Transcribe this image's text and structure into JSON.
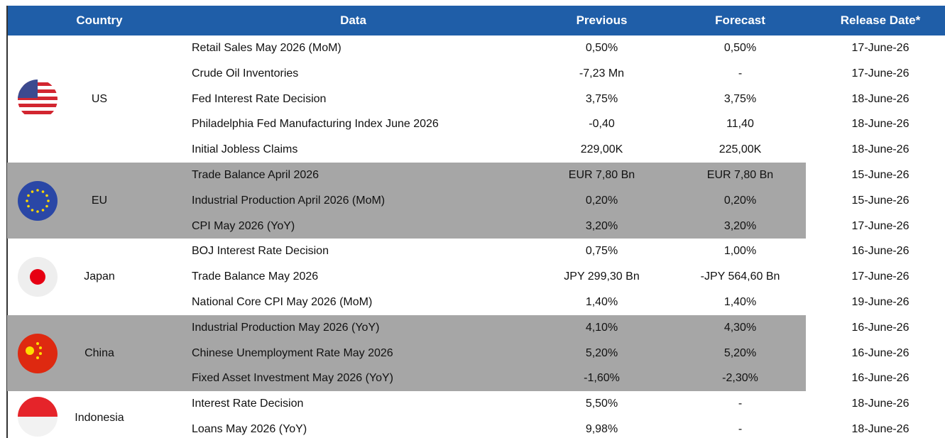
{
  "table": {
    "header": [
      "Country",
      "Data",
      "Previous",
      "Forecast",
      "Release Date*"
    ],
    "groups": [
      {
        "country": "US",
        "rows": [
          [
            "Retail Sales May 2026 (MoM)",
            "0,50%",
            "0,50%",
            "17-June-26"
          ],
          [
            "Crude Oil Inventories",
            "-7,23 Mn",
            "-",
            "17-June-26"
          ],
          [
            "Fed Interest Rate Decision",
            "3,75%",
            "3,75%",
            "18-June-26"
          ],
          [
            "Philadelphia Fed Manufacturing Index  June 2026",
            "-0,40",
            "11,40",
            "18-June-26"
          ],
          [
            "Initial Jobless Claims",
            "229,00K",
            "225,00K",
            "18-June-26"
          ]
        ]
      },
      {
        "country": "EU",
        "rows": [
          [
            "Trade Balance April 2026",
            "EUR 7,80 Bn",
            "EUR 7,80 Bn",
            "15-June-26"
          ],
          [
            "Industrial Production April 2026 (MoM)",
            "0,20%",
            "0,20%",
            "15-June-26"
          ],
          [
            "CPI May 2026 (YoY)",
            "3,20%",
            "3,20%",
            "17-June-26"
          ]
        ]
      },
      {
        "country": "Japan",
        "rows": [
          [
            "BOJ Interest Rate Decision",
            "0,75%",
            "1,00%",
            "16-June-26"
          ],
          [
            "Trade Balance May 2026",
            "JPY 299,30 Bn",
            "-JPY 564,60 Bn",
            "17-June-26"
          ],
          [
            "National Core CPI May 2026 (MoM)",
            "1,40%",
            "1,40%",
            "19-June-26"
          ]
        ]
      },
      {
        "country": "China",
        "rows": [
          [
            "Industrial Production May 2026 (YoY)",
            "4,10%",
            "4,30%",
            "16-June-26"
          ],
          [
            "Chinese Unemployment Rate May 2026",
            "5,20%",
            "5,20%",
            "16-June-26"
          ],
          [
            "Fixed Asset Investment May 2026 (YoY)",
            "-1,60%",
            "-2,30%",
            "16-June-26"
          ]
        ]
      },
      {
        "country": "Indonesia",
        "rows": [
          [
            "Interest Rate Decision",
            "5,50%",
            "-",
            "18-June-26"
          ],
          [
            "Loans May 2026 (YoY)",
            "9,98%",
            "-",
            "18-June-26"
          ]
        ]
      }
    ]
  }
}
